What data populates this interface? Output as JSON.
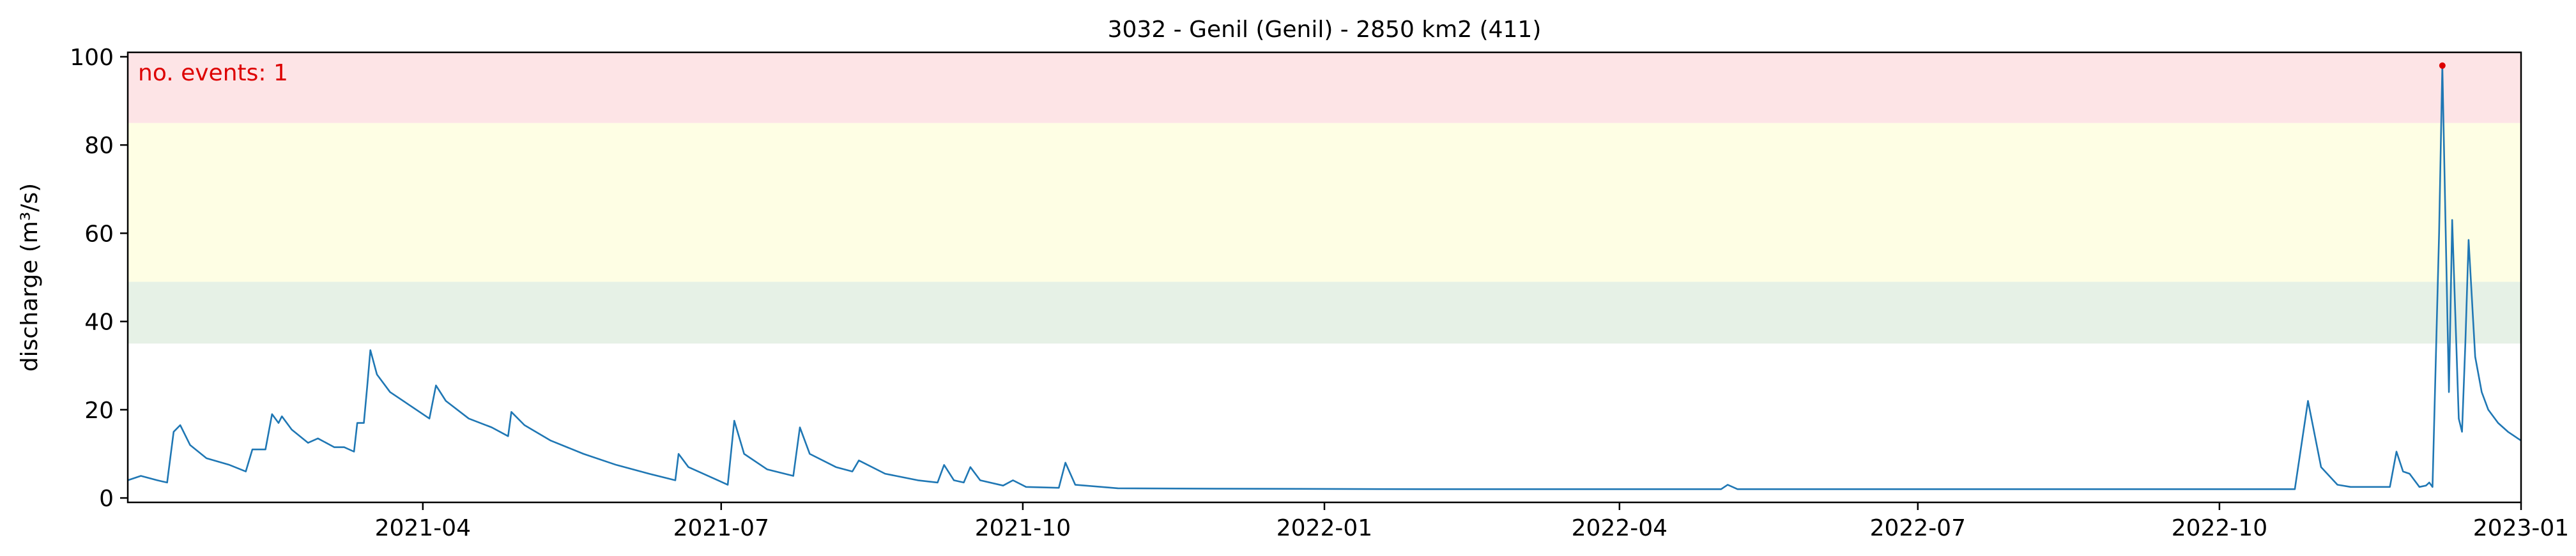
{
  "chart_data": {
    "type": "line",
    "title": "3032 - Genil (Genil) - 2850 km2 (411)",
    "xlabel": "",
    "ylabel": "discharge (m³/s)",
    "xlim": [
      "2021-01-01",
      "2023-01-01"
    ],
    "ylim": [
      -1,
      101
    ],
    "yticks": [
      0,
      20,
      40,
      60,
      80,
      100
    ],
    "xticks": [
      "2021-04",
      "2021-07",
      "2021-10",
      "2022-01",
      "2022-04",
      "2022-07",
      "2022-10",
      "2023-01"
    ],
    "xtick_dates": [
      "2021-04-01",
      "2021-07-01",
      "2021-10-01",
      "2022-01-01",
      "2022-04-01",
      "2022-07-01",
      "2022-10-01",
      "2023-01-01"
    ],
    "bands": [
      {
        "from": 35,
        "to": 49,
        "color": "#e6f1e6"
      },
      {
        "from": 49,
        "to": 85,
        "color": "#fefee4"
      },
      {
        "from": 85,
        "to": 101,
        "color": "#fde4e6"
      }
    ],
    "annotation": {
      "text": "no. events: 1",
      "color": "#dd0000",
      "position": "top-left"
    },
    "event_markers": [
      {
        "x": "2022-12-08",
        "y": 98,
        "color": "#dd0000"
      }
    ],
    "series": [
      {
        "color": "#1f77b4",
        "points": [
          [
            "2021-01-01",
            4
          ],
          [
            "2021-01-05",
            5
          ],
          [
            "2021-01-10",
            4
          ],
          [
            "2021-01-13",
            3.5
          ],
          [
            "2021-01-15",
            15
          ],
          [
            "2021-01-17",
            16.5
          ],
          [
            "2021-01-20",
            12
          ],
          [
            "2021-01-25",
            9
          ],
          [
            "2021-02-01",
            7.5
          ],
          [
            "2021-02-06",
            6
          ],
          [
            "2021-02-08",
            11
          ],
          [
            "2021-02-12",
            11
          ],
          [
            "2021-02-14",
            19
          ],
          [
            "2021-02-16",
            17
          ],
          [
            "2021-02-17",
            18.5
          ],
          [
            "2021-02-20",
            15.5
          ],
          [
            "2021-02-25",
            12.5
          ],
          [
            "2021-02-28",
            13.5
          ],
          [
            "2021-03-05",
            11.5
          ],
          [
            "2021-03-08",
            11.5
          ],
          [
            "2021-03-11",
            10.5
          ],
          [
            "2021-03-12",
            17
          ],
          [
            "2021-03-14",
            17
          ],
          [
            "2021-03-15",
            25
          ],
          [
            "2021-03-16",
            33.5
          ],
          [
            "2021-03-18",
            28
          ],
          [
            "2021-03-22",
            24
          ],
          [
            "2021-03-28",
            21
          ],
          [
            "2021-04-03",
            18
          ],
          [
            "2021-04-05",
            25.5
          ],
          [
            "2021-04-08",
            22
          ],
          [
            "2021-04-15",
            18
          ],
          [
            "2021-04-22",
            16
          ],
          [
            "2021-04-27",
            14
          ],
          [
            "2021-04-28",
            19.5
          ],
          [
            "2021-05-02",
            16.5
          ],
          [
            "2021-05-10",
            13
          ],
          [
            "2021-05-20",
            10
          ],
          [
            "2021-05-30",
            7.5
          ],
          [
            "2021-06-09",
            5.5
          ],
          [
            "2021-06-17",
            4
          ],
          [
            "2021-06-18",
            10
          ],
          [
            "2021-06-21",
            7
          ],
          [
            "2021-06-30",
            4
          ],
          [
            "2021-07-03",
            3
          ],
          [
            "2021-07-05",
            17.5
          ],
          [
            "2021-07-08",
            10
          ],
          [
            "2021-07-15",
            6.5
          ],
          [
            "2021-07-23",
            5
          ],
          [
            "2021-07-25",
            16
          ],
          [
            "2021-07-28",
            10
          ],
          [
            "2021-08-05",
            7
          ],
          [
            "2021-08-10",
            6
          ],
          [
            "2021-08-12",
            8.5
          ],
          [
            "2021-08-20",
            5.5
          ],
          [
            "2021-08-30",
            4
          ],
          [
            "2021-09-05",
            3.5
          ],
          [
            "2021-09-07",
            7.5
          ],
          [
            "2021-09-10",
            4
          ],
          [
            "2021-09-13",
            3.5
          ],
          [
            "2021-09-15",
            7
          ],
          [
            "2021-09-18",
            4
          ],
          [
            "2021-09-25",
            2.8
          ],
          [
            "2021-09-28",
            4
          ],
          [
            "2021-10-02",
            2.5
          ],
          [
            "2021-10-12",
            2.3
          ],
          [
            "2021-10-14",
            8
          ],
          [
            "2021-10-17",
            3
          ],
          [
            "2021-10-30",
            2.2
          ],
          [
            "2021-12-01",
            2.1
          ],
          [
            "2022-02-01",
            2
          ],
          [
            "2022-04-01",
            2
          ],
          [
            "2022-05-02",
            2
          ],
          [
            "2022-05-04",
            3
          ],
          [
            "2022-05-07",
            2
          ],
          [
            "2022-05-25",
            2
          ],
          [
            "2022-07-01",
            2
          ],
          [
            "2022-09-01",
            2
          ],
          [
            "2022-10-24",
            2
          ],
          [
            "2022-10-28",
            22
          ],
          [
            "2022-11-01",
            7
          ],
          [
            "2022-11-06",
            3
          ],
          [
            "2022-11-10",
            2.5
          ],
          [
            "2022-11-22",
            2.5
          ],
          [
            "2022-11-24",
            10.5
          ],
          [
            "2022-11-26",
            6
          ],
          [
            "2022-11-28",
            5.5
          ],
          [
            "2022-12-01",
            2.5
          ],
          [
            "2022-12-03",
            2.8
          ],
          [
            "2022-12-04",
            3.5
          ],
          [
            "2022-12-05",
            2.5
          ],
          [
            "2022-12-07",
            60
          ],
          [
            "2022-12-08",
            98
          ],
          [
            "2022-12-10",
            24
          ],
          [
            "2022-12-11",
            63
          ],
          [
            "2022-12-13",
            18
          ],
          [
            "2022-12-14",
            15
          ],
          [
            "2022-12-15",
            35
          ],
          [
            "2022-12-16",
            58.5
          ],
          [
            "2022-12-18",
            32
          ],
          [
            "2022-12-20",
            24
          ],
          [
            "2022-12-22",
            20
          ],
          [
            "2022-12-25",
            17
          ],
          [
            "2022-12-28",
            15
          ],
          [
            "2022-12-31",
            13.5
          ],
          [
            "2023-01-01",
            13
          ]
        ]
      }
    ]
  }
}
